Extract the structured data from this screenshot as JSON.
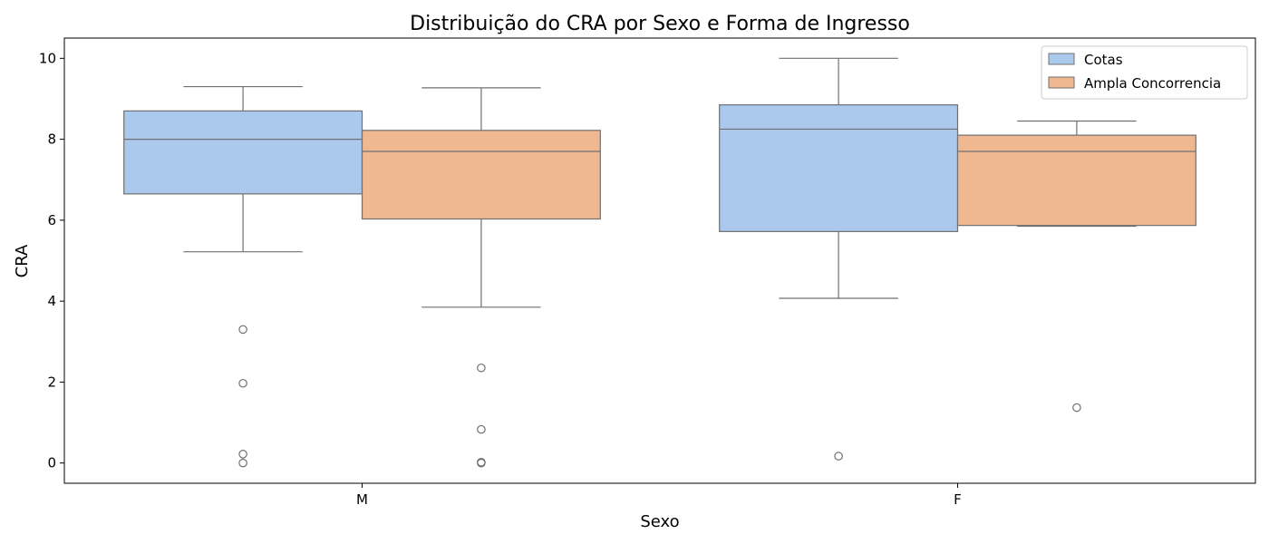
{
  "chart_data": {
    "type": "box",
    "title": "Distribuição do CRA por Sexo e Forma de Ingresso",
    "xlabel": "Sexo",
    "ylabel": "CRA",
    "categories": [
      "M",
      "F"
    ],
    "ylim": [
      -0.5,
      10.5
    ],
    "yticks": [
      0,
      2,
      4,
      6,
      8,
      10
    ],
    "legend_position": "top-right",
    "series": [
      {
        "name": "Cotas",
        "color": "#abc9ec",
        "boxes": [
          {
            "category": "M",
            "whisker_low": 5.22,
            "q1": 6.65,
            "median": 8.0,
            "q3": 8.7,
            "whisker_high": 9.3,
            "outliers": [
              3.3,
              1.97,
              0.22,
              0.0
            ]
          },
          {
            "category": "F",
            "whisker_low": 4.07,
            "q1": 5.72,
            "median": 8.25,
            "q3": 8.85,
            "whisker_high": 10.0,
            "outliers": [
              0.17
            ]
          }
        ]
      },
      {
        "name": "Ampla Concorrencia",
        "color": "#f0b891",
        "boxes": [
          {
            "category": "M",
            "whisker_low": 3.85,
            "q1": 6.03,
            "median": 7.7,
            "q3": 8.22,
            "whisker_high": 9.27,
            "outliers": [
              2.35,
              0.83,
              0.02,
              0.0
            ]
          },
          {
            "category": "F",
            "whisker_low": 5.85,
            "q1": 5.87,
            "median": 7.7,
            "q3": 8.1,
            "whisker_high": 8.45,
            "outliers": [
              1.37
            ]
          }
        ]
      }
    ]
  }
}
